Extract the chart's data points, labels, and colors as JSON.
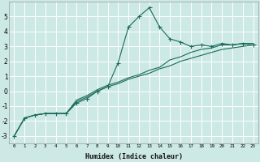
{
  "xlabel": "Humidex (Indice chaleur)",
  "ylabel": "",
  "bg_color": "#cce9e5",
  "grid_color": "#ffffff",
  "line_color": "#1a6b5a",
  "xlim": [
    -0.5,
    23.5
  ],
  "ylim": [
    -3.5,
    6.0
  ],
  "xtick_labels": [
    "0",
    "1",
    "2",
    "3",
    "4",
    "5",
    "6",
    "7",
    "8",
    "9",
    "10",
    "11",
    "12",
    "13",
    "14",
    "15",
    "16",
    "17",
    "18",
    "19",
    "20",
    "21",
    "22",
    "23"
  ],
  "xtick_vals": [
    0,
    1,
    2,
    3,
    4,
    5,
    6,
    7,
    8,
    9,
    10,
    11,
    12,
    13,
    14,
    15,
    16,
    17,
    18,
    19,
    20,
    21,
    22,
    23
  ],
  "ytick_vals": [
    -3,
    -2,
    -1,
    0,
    1,
    2,
    3,
    4,
    5
  ],
  "humidex_x": [
    0,
    1,
    2,
    3,
    4,
    5,
    6,
    7,
    8,
    9,
    10,
    11,
    12,
    13,
    14,
    15,
    16,
    17,
    18,
    19,
    20,
    21,
    22,
    23
  ],
  "line1_y": [
    -3.0,
    -1.8,
    -1.6,
    -1.5,
    -1.5,
    -1.5,
    -0.8,
    -0.5,
    0.0,
    0.3,
    1.9,
    4.3,
    5.0,
    5.6,
    4.3,
    3.5,
    3.3,
    3.0,
    3.1,
    3.0,
    3.2,
    3.1,
    3.2,
    3.1
  ],
  "line2_y": [
    -3.0,
    -1.8,
    -1.6,
    -1.5,
    -1.5,
    -1.5,
    -0.7,
    -0.4,
    0.0,
    0.3,
    0.5,
    0.8,
    1.0,
    1.2,
    1.5,
    1.7,
    2.0,
    2.2,
    2.4,
    2.6,
    2.8,
    2.9,
    3.0,
    3.1
  ],
  "line3_y": [
    -3.0,
    -1.8,
    -1.6,
    -1.5,
    -1.5,
    -1.5,
    -0.6,
    -0.3,
    0.1,
    0.4,
    0.6,
    0.9,
    1.1,
    1.4,
    1.6,
    2.1,
    2.3,
    2.6,
    2.8,
    2.9,
    3.1,
    3.1,
    3.2,
    3.2
  ]
}
